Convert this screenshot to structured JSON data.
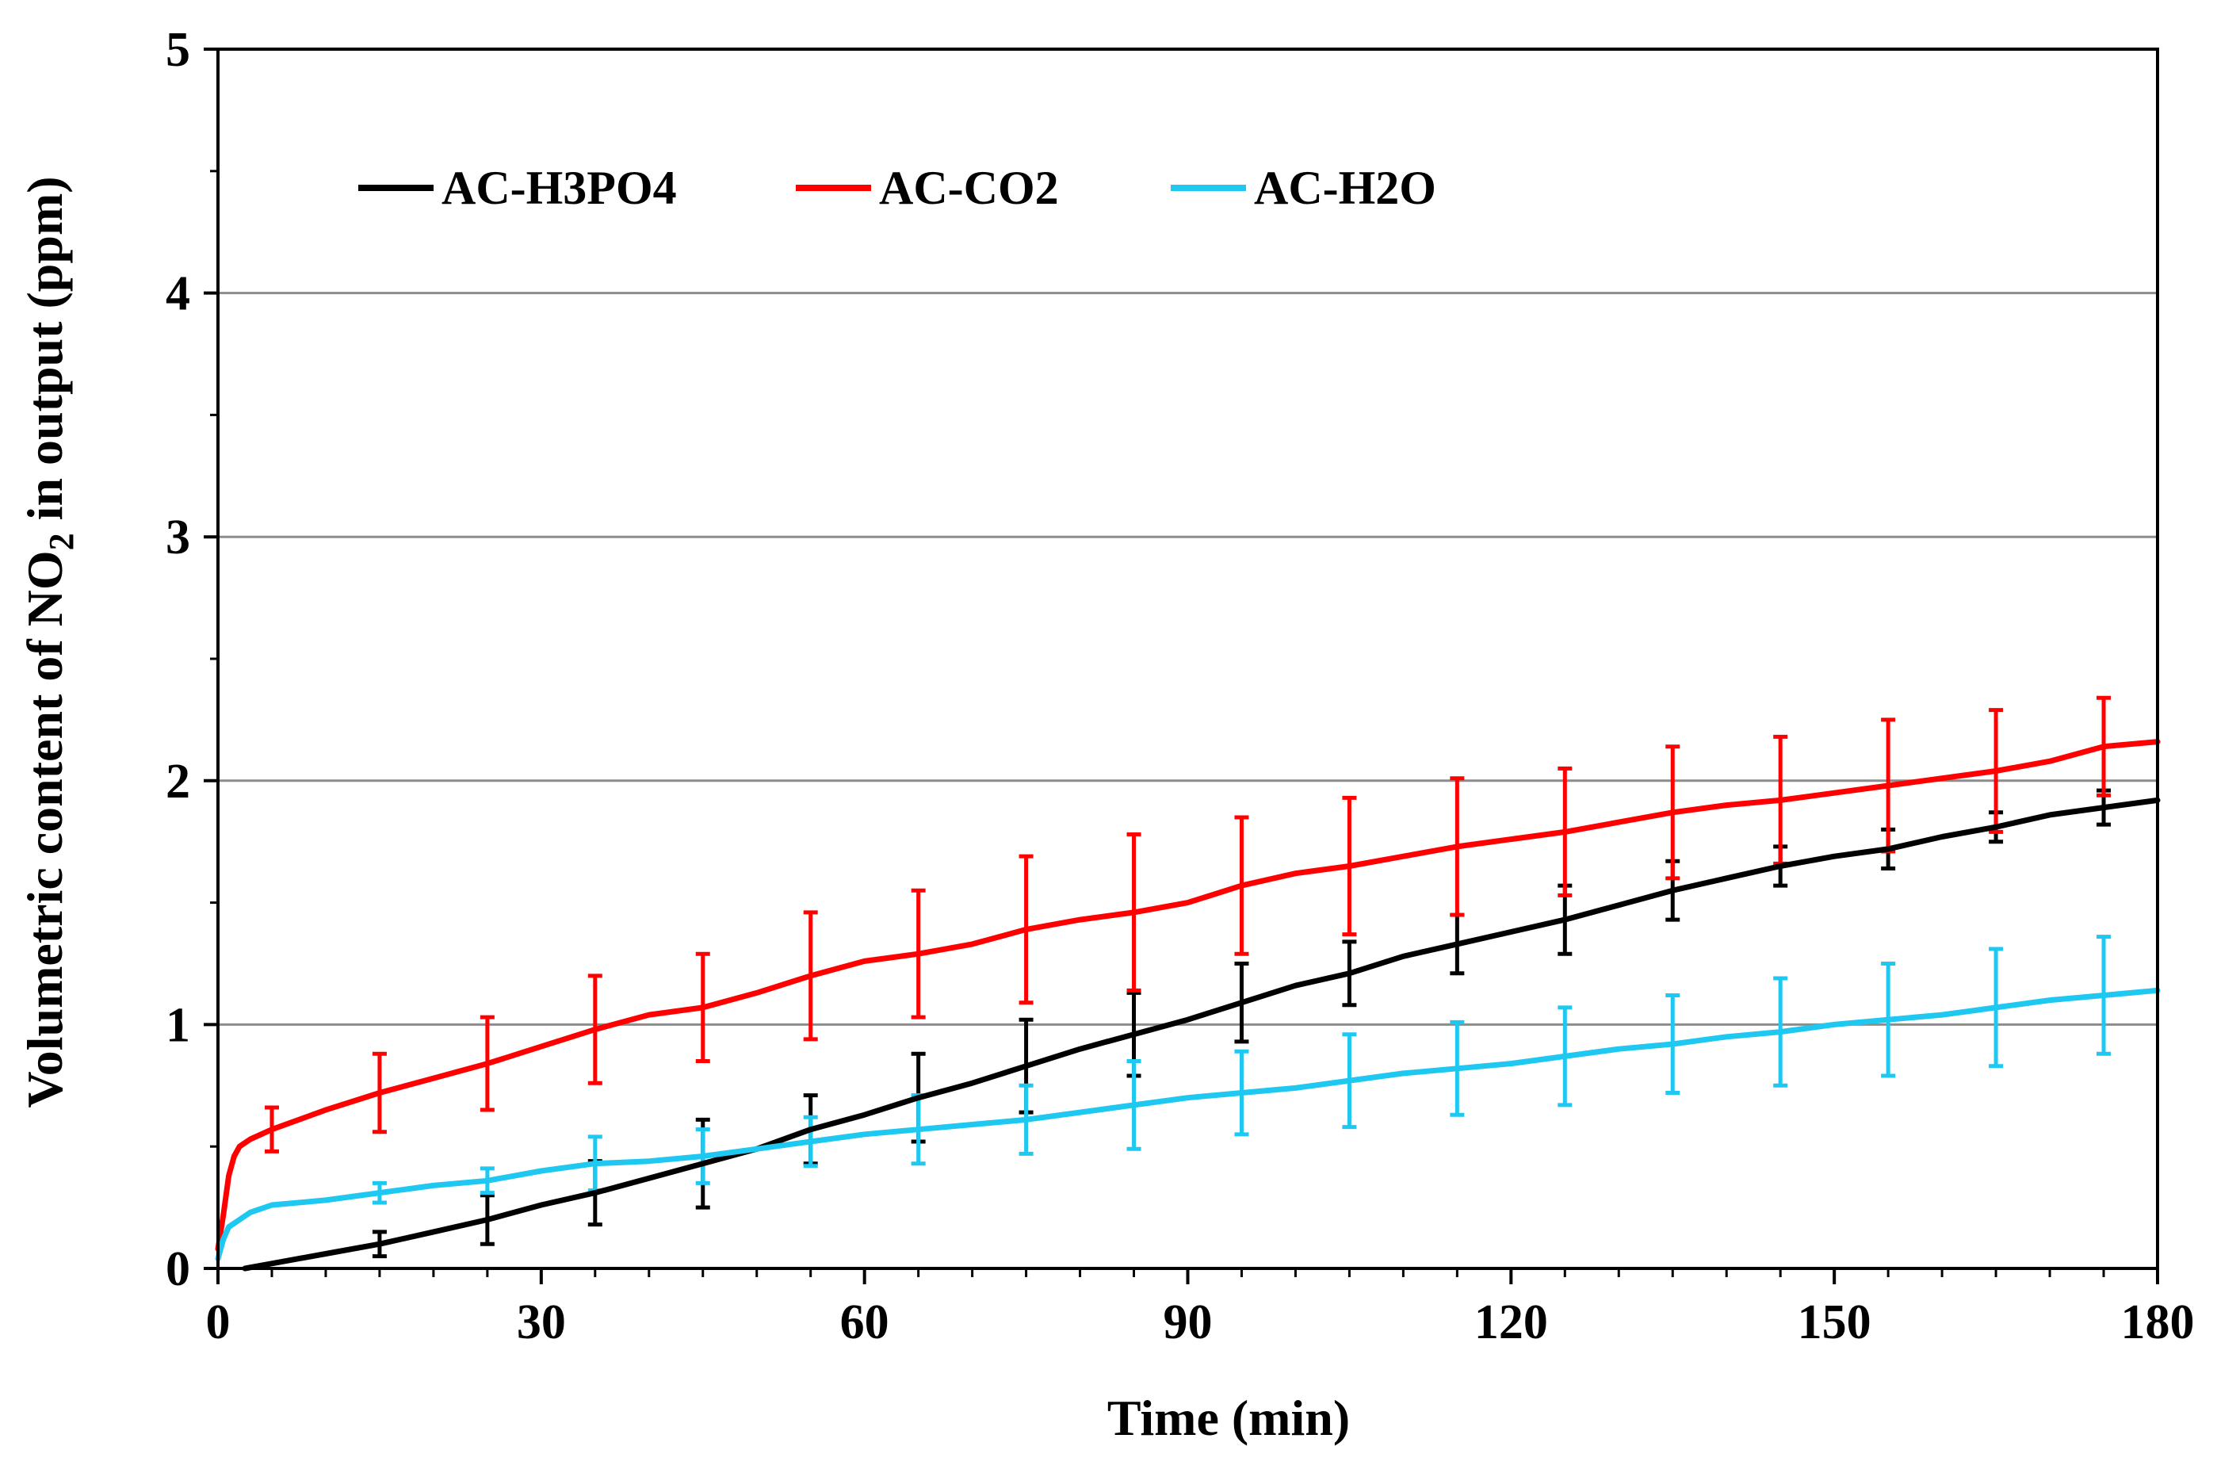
{
  "chart_data": {
    "type": "line",
    "title": "",
    "xlabel": "Time (min)",
    "ylabel": {
      "prefix": "Volumetric content of NO",
      "subscript": "2",
      "suffix": " in output (ppm)"
    },
    "xlim": [
      0,
      180
    ],
    "ylim": [
      0,
      5
    ],
    "xticks": [
      0,
      30,
      60,
      90,
      120,
      150,
      180
    ],
    "yticks": [
      0,
      1,
      2,
      3,
      4,
      5
    ],
    "legend_position": "top-left",
    "grid": "horizontal",
    "colors": {
      "AC-H3PO4": "#000000",
      "AC-CO2": "#ff0000",
      "AC-H2O": "#1ec8f0"
    },
    "series": [
      {
        "name": "AC-H3PO4",
        "x": [
          2.5,
          5,
          10,
          15,
          20,
          25,
          30,
          35,
          40,
          45,
          50,
          55,
          60,
          65,
          70,
          75,
          80,
          85,
          90,
          95,
          100,
          105,
          110,
          115,
          120,
          125,
          130,
          135,
          140,
          145,
          150,
          155,
          160,
          165,
          170,
          175,
          180
        ],
        "y": [
          0,
          0.02,
          0.06,
          0.1,
          0.15,
          0.2,
          0.26,
          0.31,
          0.37,
          0.43,
          0.49,
          0.57,
          0.63,
          0.7,
          0.76,
          0.83,
          0.9,
          0.96,
          1.02,
          1.09,
          1.16,
          1.21,
          1.28,
          1.33,
          1.38,
          1.43,
          1.49,
          1.55,
          1.6,
          1.65,
          1.69,
          1.72,
          1.77,
          1.81,
          1.86,
          1.89,
          1.92
        ],
        "error_x": [
          15,
          25,
          35,
          45,
          55,
          65,
          75,
          85,
          95,
          105,
          115,
          125,
          135,
          145,
          155,
          165,
          175
        ],
        "error_y": [
          0.1,
          0.2,
          0.31,
          0.43,
          0.57,
          0.7,
          0.83,
          0.96,
          1.09,
          1.21,
          1.33,
          1.43,
          1.55,
          1.65,
          1.72,
          1.81,
          1.89
        ],
        "error_size": [
          0.05,
          0.1,
          0.13,
          0.18,
          0.14,
          0.18,
          0.19,
          0.17,
          0.16,
          0.13,
          0.12,
          0.14,
          0.12,
          0.08,
          0.08,
          0.06,
          0.07
        ]
      },
      {
        "name": "AC-CO2",
        "x": [
          0,
          0.5,
          1,
          1.5,
          2,
          3,
          5,
          10,
          15,
          20,
          25,
          30,
          35,
          40,
          45,
          50,
          55,
          60,
          65,
          70,
          75,
          80,
          85,
          90,
          95,
          100,
          105,
          110,
          115,
          120,
          125,
          130,
          135,
          140,
          145,
          150,
          155,
          160,
          165,
          170,
          175,
          180
        ],
        "y": [
          0.08,
          0.22,
          0.38,
          0.46,
          0.5,
          0.53,
          0.57,
          0.65,
          0.72,
          0.78,
          0.84,
          0.91,
          0.98,
          1.04,
          1.07,
          1.13,
          1.2,
          1.26,
          1.29,
          1.33,
          1.39,
          1.43,
          1.46,
          1.5,
          1.57,
          1.62,
          1.65,
          1.69,
          1.73,
          1.76,
          1.79,
          1.83,
          1.87,
          1.9,
          1.92,
          1.95,
          1.98,
          2.01,
          2.04,
          2.08,
          2.14,
          2.16
        ],
        "error_x": [
          5,
          15,
          25,
          35,
          45,
          55,
          65,
          75,
          85,
          95,
          105,
          115,
          125,
          135,
          145,
          155,
          165,
          175
        ],
        "error_y": [
          0.57,
          0.72,
          0.84,
          0.98,
          1.07,
          1.2,
          1.29,
          1.39,
          1.46,
          1.57,
          1.65,
          1.73,
          1.79,
          1.87,
          1.92,
          1.98,
          2.04,
          2.14
        ],
        "error_size": [
          0.09,
          0.16,
          0.19,
          0.22,
          0.22,
          0.26,
          0.26,
          0.3,
          0.32,
          0.28,
          0.28,
          0.28,
          0.26,
          0.27,
          0.26,
          0.27,
          0.25,
          0.2
        ]
      },
      {
        "name": "AC-H2O",
        "x": [
          0,
          0.5,
          1,
          2,
          3,
          5,
          10,
          15,
          20,
          25,
          30,
          35,
          40,
          45,
          50,
          55,
          60,
          65,
          70,
          75,
          80,
          85,
          90,
          95,
          100,
          105,
          110,
          115,
          120,
          125,
          130,
          135,
          140,
          145,
          150,
          155,
          160,
          165,
          170,
          175,
          180
        ],
        "y": [
          0.04,
          0.12,
          0.17,
          0.2,
          0.23,
          0.26,
          0.28,
          0.31,
          0.34,
          0.36,
          0.4,
          0.43,
          0.44,
          0.46,
          0.49,
          0.52,
          0.55,
          0.57,
          0.59,
          0.61,
          0.64,
          0.67,
          0.7,
          0.72,
          0.74,
          0.77,
          0.8,
          0.82,
          0.84,
          0.87,
          0.9,
          0.92,
          0.95,
          0.97,
          1.0,
          1.02,
          1.04,
          1.07,
          1.1,
          1.12,
          1.14
        ],
        "error_x": [
          15,
          25,
          35,
          45,
          55,
          65,
          75,
          85,
          95,
          105,
          115,
          125,
          135,
          145,
          155,
          165,
          175
        ],
        "error_y": [
          0.31,
          0.36,
          0.43,
          0.46,
          0.52,
          0.57,
          0.61,
          0.67,
          0.72,
          0.77,
          0.82,
          0.87,
          0.92,
          0.97,
          1.02,
          1.07,
          1.12
        ],
        "error_size": [
          0.04,
          0.05,
          0.11,
          0.11,
          0.1,
          0.14,
          0.14,
          0.18,
          0.17,
          0.19,
          0.19,
          0.2,
          0.2,
          0.22,
          0.23,
          0.24,
          0.24
        ]
      }
    ]
  }
}
